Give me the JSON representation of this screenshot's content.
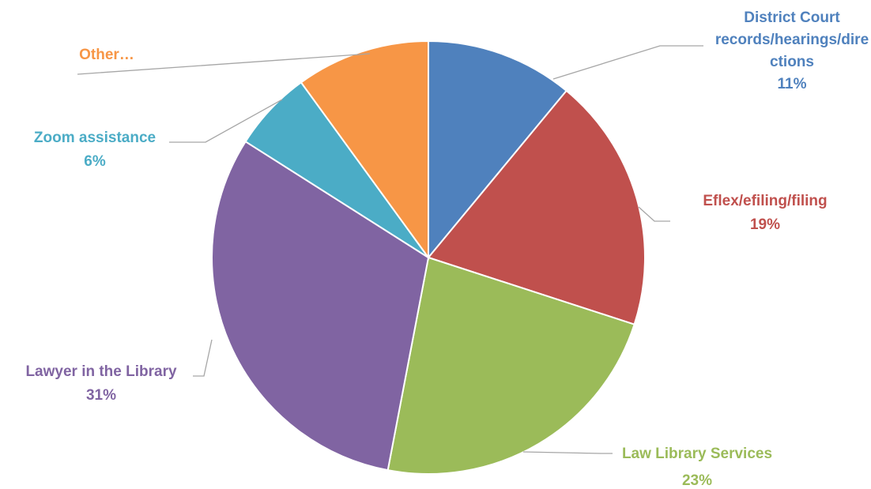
{
  "chart_data": {
    "type": "pie",
    "title": "",
    "start_angle_deg": 0,
    "direction": "clockwise",
    "legend": "none",
    "slices": [
      {
        "label_lines": [
          "District Court",
          "records/hearings/dire",
          "ctions"
        ],
        "percent_text": "11%",
        "value": 11,
        "color": "#4f81bd"
      },
      {
        "label_lines": [
          "Eflex/efiling/filing"
        ],
        "percent_text": "19%",
        "value": 19,
        "color": "#c0504d"
      },
      {
        "label_lines": [
          "Law Library Services"
        ],
        "percent_text": "23%",
        "value": 23,
        "color": "#9bbb59"
      },
      {
        "label_lines": [
          "Lawyer in the Library"
        ],
        "percent_text": "31%",
        "value": 31,
        "color": "#8064a2"
      },
      {
        "label_lines": [
          "Zoom assistance"
        ],
        "percent_text": "6%",
        "value": 6,
        "color": "#4bacc6"
      },
      {
        "label_lines": [
          "Other…"
        ],
        "percent_text": "",
        "value": 10,
        "color": "#f79646"
      }
    ]
  }
}
